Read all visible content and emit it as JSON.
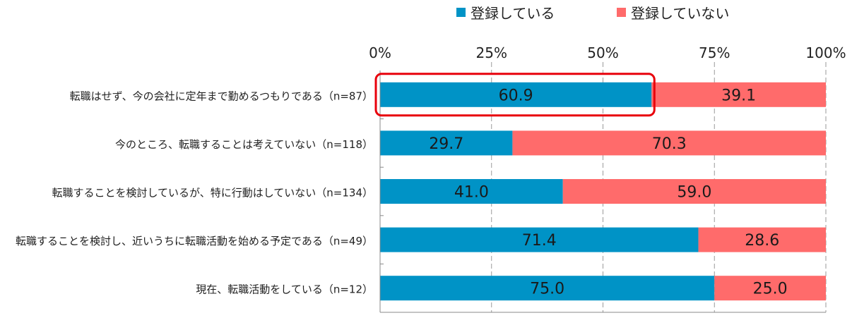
{
  "chart_data": {
    "type": "bar",
    "stacked": true,
    "orientation": "horizontal",
    "categories": [
      "転職はせず、今の会社に定年まで勤めるつもりである（n=87）",
      "今のところ、転職することは考えていない（n=118）",
      "転職することを検討しているが、特に行動はしていない（n=134）",
      "転職することを検討し、近いうちに転職活動を始める予定である（n=49）",
      "現在、転職活動をしている（n=12）"
    ],
    "series": [
      {
        "name": "登録している",
        "values": [
          60.9,
          29.7,
          41.0,
          71.4,
          75.0
        ],
        "labels": [
          "60.9",
          "29.7",
          "41.0",
          "71.4",
          "75.0"
        ]
      },
      {
        "name": "登録していない",
        "values": [
          39.1,
          70.3,
          59.0,
          28.6,
          25.0
        ],
        "labels": [
          "39.1",
          "70.3",
          "59.0",
          "28.6",
          "25.0"
        ]
      }
    ],
    "xlim": [
      0,
      100
    ],
    "x_ticks": [
      0,
      25,
      50,
      75,
      100
    ],
    "x_tick_labels": [
      "0%",
      "25%",
      "50%",
      "75%",
      "100%"
    ],
    "grid": "vertical dashed",
    "legend_position": "top",
    "highlight": {
      "category_index": 0,
      "series_index": 0
    },
    "colors": {
      "registered": "#0093C6",
      "not_registered": "#FF6B6B",
      "highlight": "#E8000B",
      "grid": "#9a9a9a"
    }
  }
}
